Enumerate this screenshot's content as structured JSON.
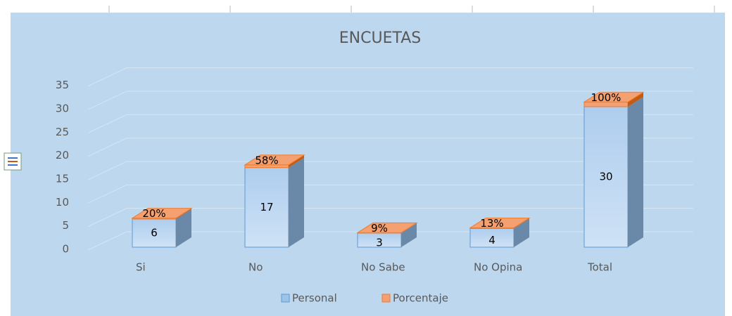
{
  "chart_data": {
    "type": "bar3d_stacked",
    "title": "ENCUETAS",
    "categories": [
      "Si",
      "No",
      "No Sabe",
      "No Opina",
      "Total"
    ],
    "series": [
      {
        "name": "Personal",
        "color": "#9dc3e6",
        "values": [
          6,
          17,
          3,
          4,
          30
        ]
      },
      {
        "name": "Porcentaje",
        "color": "#f4a070",
        "values": [
          0.2,
          0.58,
          0.09,
          0.13,
          1
        ],
        "value_labels": [
          "20%",
          "58%",
          "9%",
          "13%",
          "100%"
        ]
      }
    ],
    "ylim": [
      0,
      35
    ],
    "yticks": [
      0,
      5,
      10,
      15,
      20,
      25,
      30,
      35
    ],
    "grid": true,
    "legend": "bottom"
  }
}
